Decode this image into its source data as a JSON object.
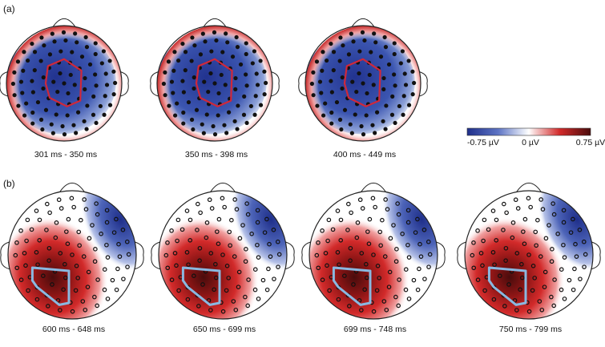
{
  "panels": [
    {
      "label": "(a)",
      "maps": [
        {
          "time_window": "301 ms - 350 ms",
          "roi": "central"
        },
        {
          "time_window": "350 ms - 398 ms",
          "roi": "central"
        },
        {
          "time_window": "400 ms - 449 ms",
          "roi": "central"
        }
      ]
    },
    {
      "label": "(b)",
      "maps": [
        {
          "time_window": "600 ms - 648 ms",
          "roi": "left-posterior"
        },
        {
          "time_window": "650 ms - 699 ms",
          "roi": "left-posterior"
        },
        {
          "time_window": "699 ms - 748 ms",
          "roi": "left-posterior"
        },
        {
          "time_window": "750 ms - 799 ms",
          "roi": "left-posterior"
        }
      ]
    }
  ],
  "colorbar": {
    "min_label": "-0.75 µV",
    "mid_label": "0 µV",
    "max_label": "0.75 µV",
    "min_value": -0.75,
    "max_value": 0.75,
    "negative_color": "#1f2f8a",
    "zero_color": "#ffffff",
    "positive_color": "#4a0c0c"
  },
  "roi_colors": {
    "central": "#d0283a",
    "left-posterior": "#8ab8e0"
  },
  "electrode_color": "#111111"
}
